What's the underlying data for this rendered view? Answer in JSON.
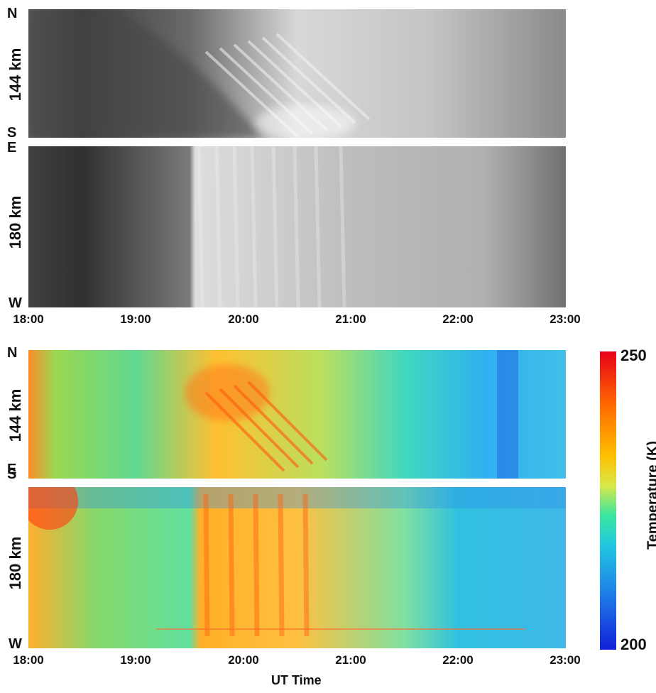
{
  "figure": {
    "range_labels": {
      "panel_144_gray": "144 km",
      "panel_180_gray": "180 km",
      "panel_144_temp": "144 km",
      "panel_180_temp": "180 km"
    },
    "direction_labels": {
      "north": "N",
      "south": "S",
      "east": "E",
      "west": "W"
    },
    "x_ticks_top": [
      "18:00",
      "19:00",
      "20:00",
      "21:00",
      "22:00",
      "23:00"
    ],
    "x_ticks_bottom": [
      "18:00",
      "19:00",
      "20:00",
      "21:00",
      "22:00",
      "23:00"
    ],
    "x_axis_label": "UT Time",
    "colorbar": {
      "label": "Temperature (K)",
      "max": "250",
      "min": "200"
    }
  },
  "chart_data": [
    {
      "type": "heatmap",
      "panel": "top-gray",
      "ylabel": "144 km",
      "y_range": [
        "S",
        "N"
      ],
      "x_range": [
        "18:00",
        "23:00"
      ]
    },
    {
      "type": "heatmap",
      "panel": "gray",
      "ylabel": "180 km",
      "y_range": [
        "W",
        "E"
      ],
      "x_range": [
        "18:00",
        "23:00"
      ]
    },
    {
      "type": "heatmap",
      "panel": "temperature",
      "ylabel": "144 km",
      "y_range": [
        "S",
        "N"
      ],
      "x_range": [
        "18:00",
        "23:00"
      ],
      "colorbar_range_K": [
        200,
        250
      ]
    },
    {
      "type": "heatmap",
      "panel": "temperature",
      "ylabel": "180 km",
      "y_range": [
        "W",
        "E"
      ],
      "x_range": [
        "18:00",
        "23:00"
      ],
      "colorbar_range_K": [
        200,
        250
      ]
    }
  ]
}
